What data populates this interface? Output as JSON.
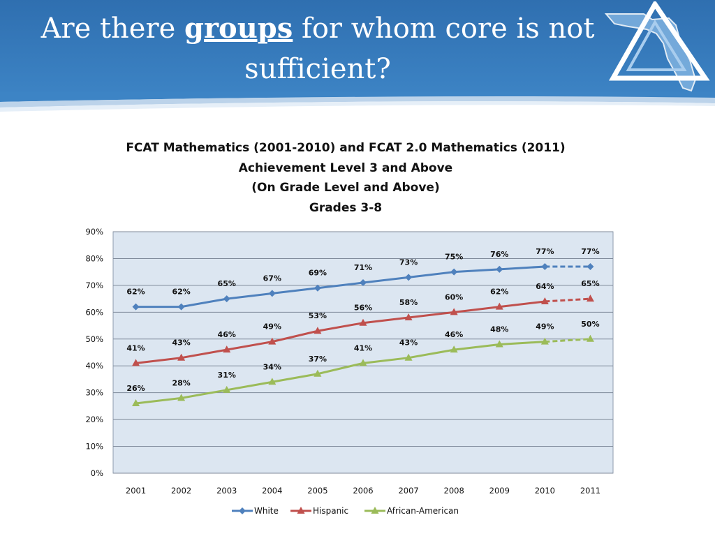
{
  "slide": {
    "title_before": "Are there ",
    "title_emphasis": "groups",
    "title_after": " for whom core is not sufficient?"
  },
  "chart_data": {
    "type": "line",
    "title_lines": [
      "FCAT Mathematics (2001-2010) and FCAT 2.0 Mathematics (2011)",
      "Achievement Level 3 and Above",
      "(On Grade Level and Above)",
      "Grades 3-8"
    ],
    "categories": [
      "2001",
      "2002",
      "2003",
      "2004",
      "2005",
      "2006",
      "2007",
      "2008",
      "2009",
      "2010",
      "2011"
    ],
    "y_ticks": [
      "0%",
      "10%",
      "20%",
      "30%",
      "40%",
      "50%",
      "60%",
      "70%",
      "80%",
      "90%"
    ],
    "ylim": [
      0,
      90
    ],
    "grid": true,
    "legend_position": "bottom",
    "plot_background": "#dce6f1",
    "series": [
      {
        "name": "White",
        "color": "#4f81bd",
        "marker": "diamond",
        "values": [
          62,
          62,
          65,
          67,
          69,
          71,
          73,
          75,
          76,
          77,
          77
        ],
        "labels": [
          "62%",
          "62%",
          "65%",
          "67%",
          "69%",
          "71%",
          "73%",
          "75%",
          "76%",
          "77%",
          "77%"
        ]
      },
      {
        "name": "Hispanic",
        "color": "#c0504d",
        "marker": "triangle",
        "values": [
          41,
          43,
          46,
          49,
          53,
          56,
          58,
          60,
          62,
          64,
          65
        ],
        "labels": [
          "41%",
          "43%",
          "46%",
          "49%",
          "53%",
          "56%",
          "58%",
          "60%",
          "62%",
          "64%",
          "65%"
        ]
      },
      {
        "name": "African-American",
        "color": "#9bbb59",
        "marker": "triangle",
        "values": [
          26,
          28,
          31,
          34,
          37,
          41,
          43,
          46,
          48,
          49,
          50
        ],
        "labels": [
          "26%",
          "28%",
          "31%",
          "34%",
          "37%",
          "41%",
          "43%",
          "46%",
          "48%",
          "49%",
          "50%"
        ]
      }
    ],
    "dashed_last_segment": true
  }
}
